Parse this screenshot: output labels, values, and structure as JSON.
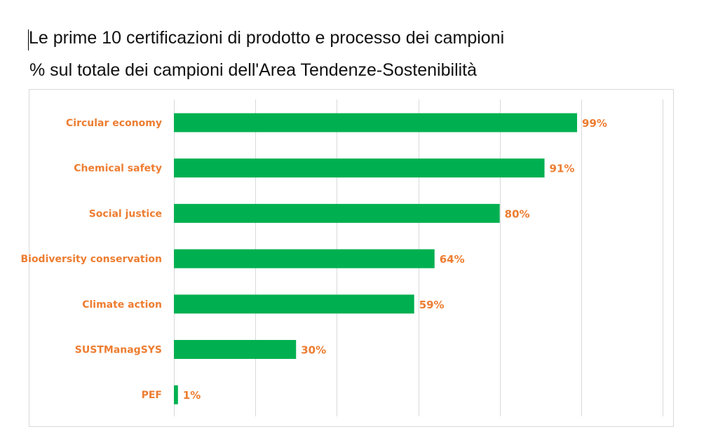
{
  "header": {
    "title": "Le prime 10 certificazioni di prodotto e processo dei campioni",
    "subtitle": "% sul totale dei campioni dell'Area Tendenze-Sostenibilità"
  },
  "colors": {
    "bar": "#00b050",
    "label": "#ed7d31",
    "grid": "#d9d9d9"
  },
  "chart_data": {
    "type": "bar",
    "orientation": "horizontal",
    "title": "",
    "xlabel": "",
    "ylabel": "",
    "categories": [
      "Circular economy",
      "Chemical safety",
      "Social justice",
      "Biodiversity conservation",
      "Climate action",
      "SUSTManagSYS",
      "PEF"
    ],
    "values": [
      99,
      91,
      80,
      64,
      59,
      30,
      1
    ],
    "value_labels": [
      "99%",
      "91%",
      "80%",
      "64%",
      "59%",
      "30%",
      "1%"
    ],
    "xlim": [
      0,
      120
    ],
    "grid": true,
    "legend": "none"
  }
}
